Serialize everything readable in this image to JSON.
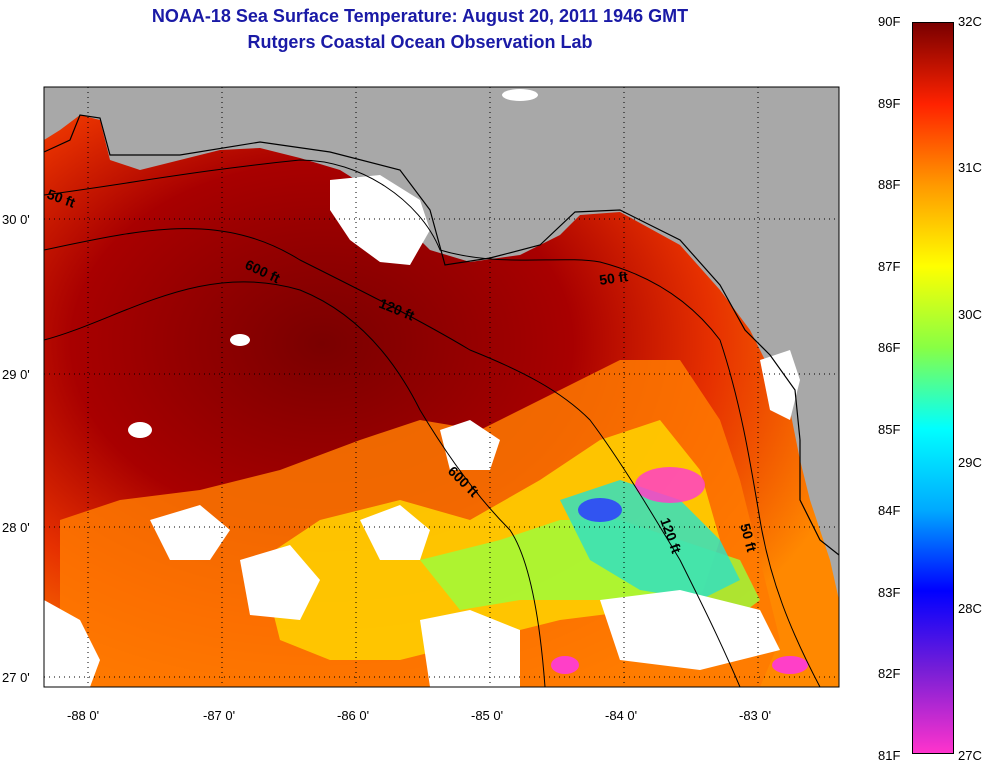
{
  "header": {
    "title": "NOAA-18 Sea Surface Temperature:  August 20, 2011 1946 GMT",
    "subtitle": "Rutgers Coastal Ocean Observation Lab"
  },
  "map": {
    "x_ticks": [
      "-88 0'",
      "-87 0'",
      "-86 0'",
      "-85 0'",
      "-84 0'",
      "-83 0'"
    ],
    "y_ticks": [
      "30 0'",
      "29 0'",
      "28 0'",
      "27 0'"
    ],
    "contour_labels": [
      "50 ft",
      "600 ft",
      "120 ft",
      "50 ft",
      "600 ft",
      "120 ft",
      "50 ft"
    ],
    "colors": {
      "land": "#a8a8a8",
      "cloud": "#ffffff",
      "hot": "#8b0000"
    }
  },
  "colorbar": {
    "f_labels": [
      "90F",
      "89F",
      "88F",
      "87F",
      "86F",
      "85F",
      "84F",
      "83F",
      "82F",
      "81F"
    ],
    "c_labels": [
      "32C",
      "31C",
      "30C",
      "29C",
      "28C",
      "27C"
    ],
    "stops": [
      "#ff33cc",
      "#7a1fd6",
      "#0000ff",
      "#00aaff",
      "#00ffff",
      "#88ff44",
      "#ffff00",
      "#ff9900",
      "#ff2200",
      "#7a0000"
    ]
  }
}
